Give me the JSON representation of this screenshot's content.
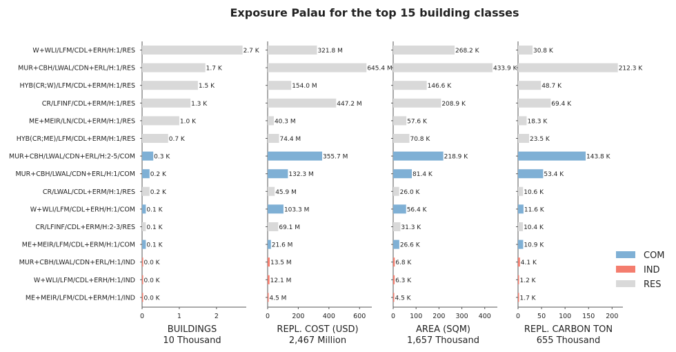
{
  "title": "Exposure Palau for the top 15 building classes",
  "legend": {
    "placement": "bottom-right",
    "items": [
      {
        "name": "COM",
        "color": "#7fb0d5"
      },
      {
        "name": "IND",
        "color": "#f47d6e"
      },
      {
        "name": "RES",
        "color": "#d9d9d9"
      }
    ]
  },
  "chart_data": {
    "type": "bar",
    "orientation": "horizontal",
    "title": "Exposure Palau for the top 15 building classes",
    "categories": [
      "W+WLI/LFM/CDL+ERH/H:1/RES",
      "MUR+CBH/LWAL/CDN+ERL/H:1/RES",
      "HYB(CR;W)/LFM/CDL+ERM/H:1/RES",
      "CR/LFINF/CDL+ERM/H:1/RES",
      "ME+MEIR/LN/CDL+ERM/H:1/RES",
      "HYB(CR;ME)/LFM/CDL+ERM/H:1/RES",
      "MUR+CBH/LWAL/CDN+ERL/H:2-5/COM",
      "MUR+CBH/LWAL/CDN+ERL/H:1/COM",
      "CR/LWAL/CDL+ERM/H:1/RES",
      "W+WLI/LFM/CDL+ERH/H:1/COM",
      "CR/LFINF/CDL+ERM/H:2-3/RES",
      "ME+MEIR/LFM/CDL+ERM/H:1/COM",
      "MUR+CBH/LWAL/CDN+ERL/H:1/IND",
      "W+WLI/LFM/CDL+ERH/H:1/IND",
      "ME+MEIR/LFM/CDL+ERM/H:1/IND"
    ],
    "occupancy": [
      "RES",
      "RES",
      "RES",
      "RES",
      "RES",
      "RES",
      "COM",
      "COM",
      "RES",
      "COM",
      "RES",
      "COM",
      "IND",
      "IND",
      "IND"
    ],
    "series": [
      {
        "xlabel": "BUILDINGS",
        "total": "10 Thousand",
        "xlim": [
          0,
          2.8
        ],
        "xticks": [
          0,
          1,
          2
        ],
        "values": [
          2.7,
          1.7,
          1.5,
          1.3,
          1.0,
          0.7,
          0.3,
          0.2,
          0.2,
          0.1,
          0.1,
          0.1,
          0.0,
          0.0,
          0.0
        ],
        "labels": [
          "2.7 K",
          "1.7 K",
          "1.5 K",
          "1.3 K",
          "1.0 K",
          "0.7 K",
          "0.3 K",
          "0.2 K",
          "0.2 K",
          "0.1 K",
          "0.1 K",
          "0.1 K",
          "0.0 K",
          "0.0 K",
          "0.0 K"
        ]
      },
      {
        "xlabel": "REPL. COST (USD)",
        "total": "2,467 Million",
        "xlim": [
          0,
          680
        ],
        "xticks": [
          0,
          200,
          400,
          600
        ],
        "values": [
          321.8,
          645.4,
          154.0,
          447.2,
          40.3,
          74.4,
          355.7,
          132.3,
          45.9,
          103.3,
          69.1,
          21.6,
          13.5,
          12.1,
          4.5
        ],
        "labels": [
          "321.8 M",
          "645.4 M",
          "154.0 M",
          "447.2 M",
          "40.3 M",
          "74.4 M",
          "355.7 M",
          "132.3 M",
          "45.9 M",
          "103.3 M",
          "69.1 M",
          "21.6 M",
          "13.5 M",
          "12.1 M",
          "4.5 M"
        ]
      },
      {
        "xlabel": "AREA (SQM)",
        "total": "1,657 Thousand",
        "xlim": [
          0,
          455
        ],
        "xticks": [
          0,
          100,
          200,
          300,
          400
        ],
        "values": [
          268.2,
          433.9,
          146.6,
          208.9,
          57.6,
          70.8,
          218.9,
          81.4,
          26.0,
          56.4,
          31.3,
          26.6,
          6.8,
          6.3,
          4.5
        ],
        "labels": [
          "268.2 K",
          "433.9 K",
          "146.6 K",
          "208.9 K",
          "57.6 K",
          "70.8 K",
          "218.9 K",
          "81.4 K",
          "26.0 K",
          "56.4 K",
          "31.3 K",
          "26.6 K",
          "6.8 K",
          "6.3 K",
          "4.5 K"
        ]
      },
      {
        "xlabel": "REPL. CARBON TON",
        "total": "655 Thousand",
        "xlim": [
          0,
          223
        ],
        "xticks": [
          0,
          50,
          100,
          150,
          200
        ],
        "values": [
          30.8,
          212.3,
          48.7,
          69.4,
          18.3,
          23.5,
          143.8,
          53.4,
          10.6,
          11.6,
          10.4,
          10.9,
          4.1,
          1.2,
          1.7
        ],
        "labels": [
          "30.8 K",
          "212.3 K",
          "48.7 K",
          "69.4 K",
          "18.3 K",
          "23.5 K",
          "143.8 K",
          "53.4 K",
          "10.6 K",
          "11.6 K",
          "10.4 K",
          "10.9 K",
          "4.1 K",
          "1.2 K",
          "1.7 K"
        ]
      }
    ]
  }
}
